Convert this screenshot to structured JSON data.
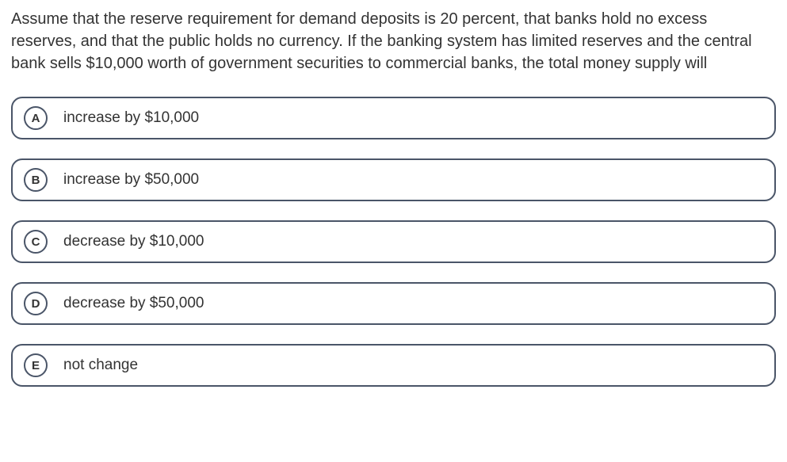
{
  "question": {
    "text": "Assume that the reserve requirement for demand deposits is 20 percent, that banks hold no excess reserves, and that the public holds no currency. If the banking system has limited reserves and the central bank sells $10,000 worth of government securities to commercial banks, the total money supply will",
    "color": "#333333"
  },
  "options": [
    {
      "letter": "A",
      "text": "increase by $10,000"
    },
    {
      "letter": "B",
      "text": "increase by $50,000"
    },
    {
      "letter": "C",
      "text": "decrease by $10,000"
    },
    {
      "letter": "D",
      "text": "decrease by $50,000"
    },
    {
      "letter": "E",
      "text": "not change"
    }
  ],
  "styles": {
    "option_border_color": "#4a5568",
    "badge_border_color": "#4a5568",
    "badge_text_color": "#333333",
    "option_border_radius": 14
  }
}
